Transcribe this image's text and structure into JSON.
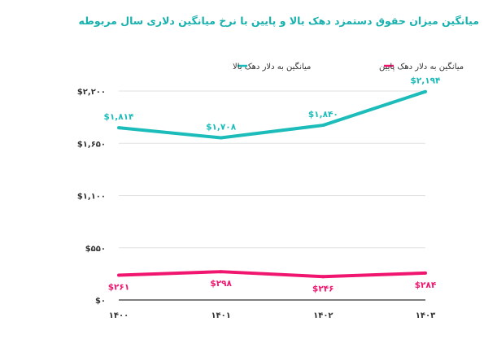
{
  "chart_data": {
    "type": "line",
    "title": "میانگین میزان حقوق دستمزد دهک بالا و پایین با نرخ میانگین دلاری سال مربوطه",
    "categories": [
      "۱۴۰۰",
      "۱۴۰۱",
      "۱۴۰۲",
      "۱۴۰۳"
    ],
    "ylim": [
      0,
      2200
    ],
    "yticks": [
      0,
      550,
      1100,
      1650,
      2200
    ],
    "ytick_labels": [
      "$۰",
      "$۵۵۰",
      "$۱,۱۰۰",
      "$۱,۶۵۰",
      "$۲,۲۰۰"
    ],
    "grid": true,
    "legend_position": "top",
    "series": [
      {
        "name": "میانگین به دلار دهک بالا",
        "color": "#1bbcb9",
        "values": [
          1814,
          1708,
          1840,
          2194
        ],
        "labels": [
          "$۱,۸۱۴",
          "$۱,۷۰۸",
          "$۱,۸۴۰",
          "$۲,۱۹۴"
        ]
      },
      {
        "name": "میانگین به دلار دهک پایین",
        "color": "#f0166f",
        "values": [
          261,
          298,
          246,
          284
        ],
        "labels": [
          "$۲۶۱",
          "$۲۹۸",
          "$۲۴۶",
          "$۲۸۴"
        ]
      }
    ]
  }
}
